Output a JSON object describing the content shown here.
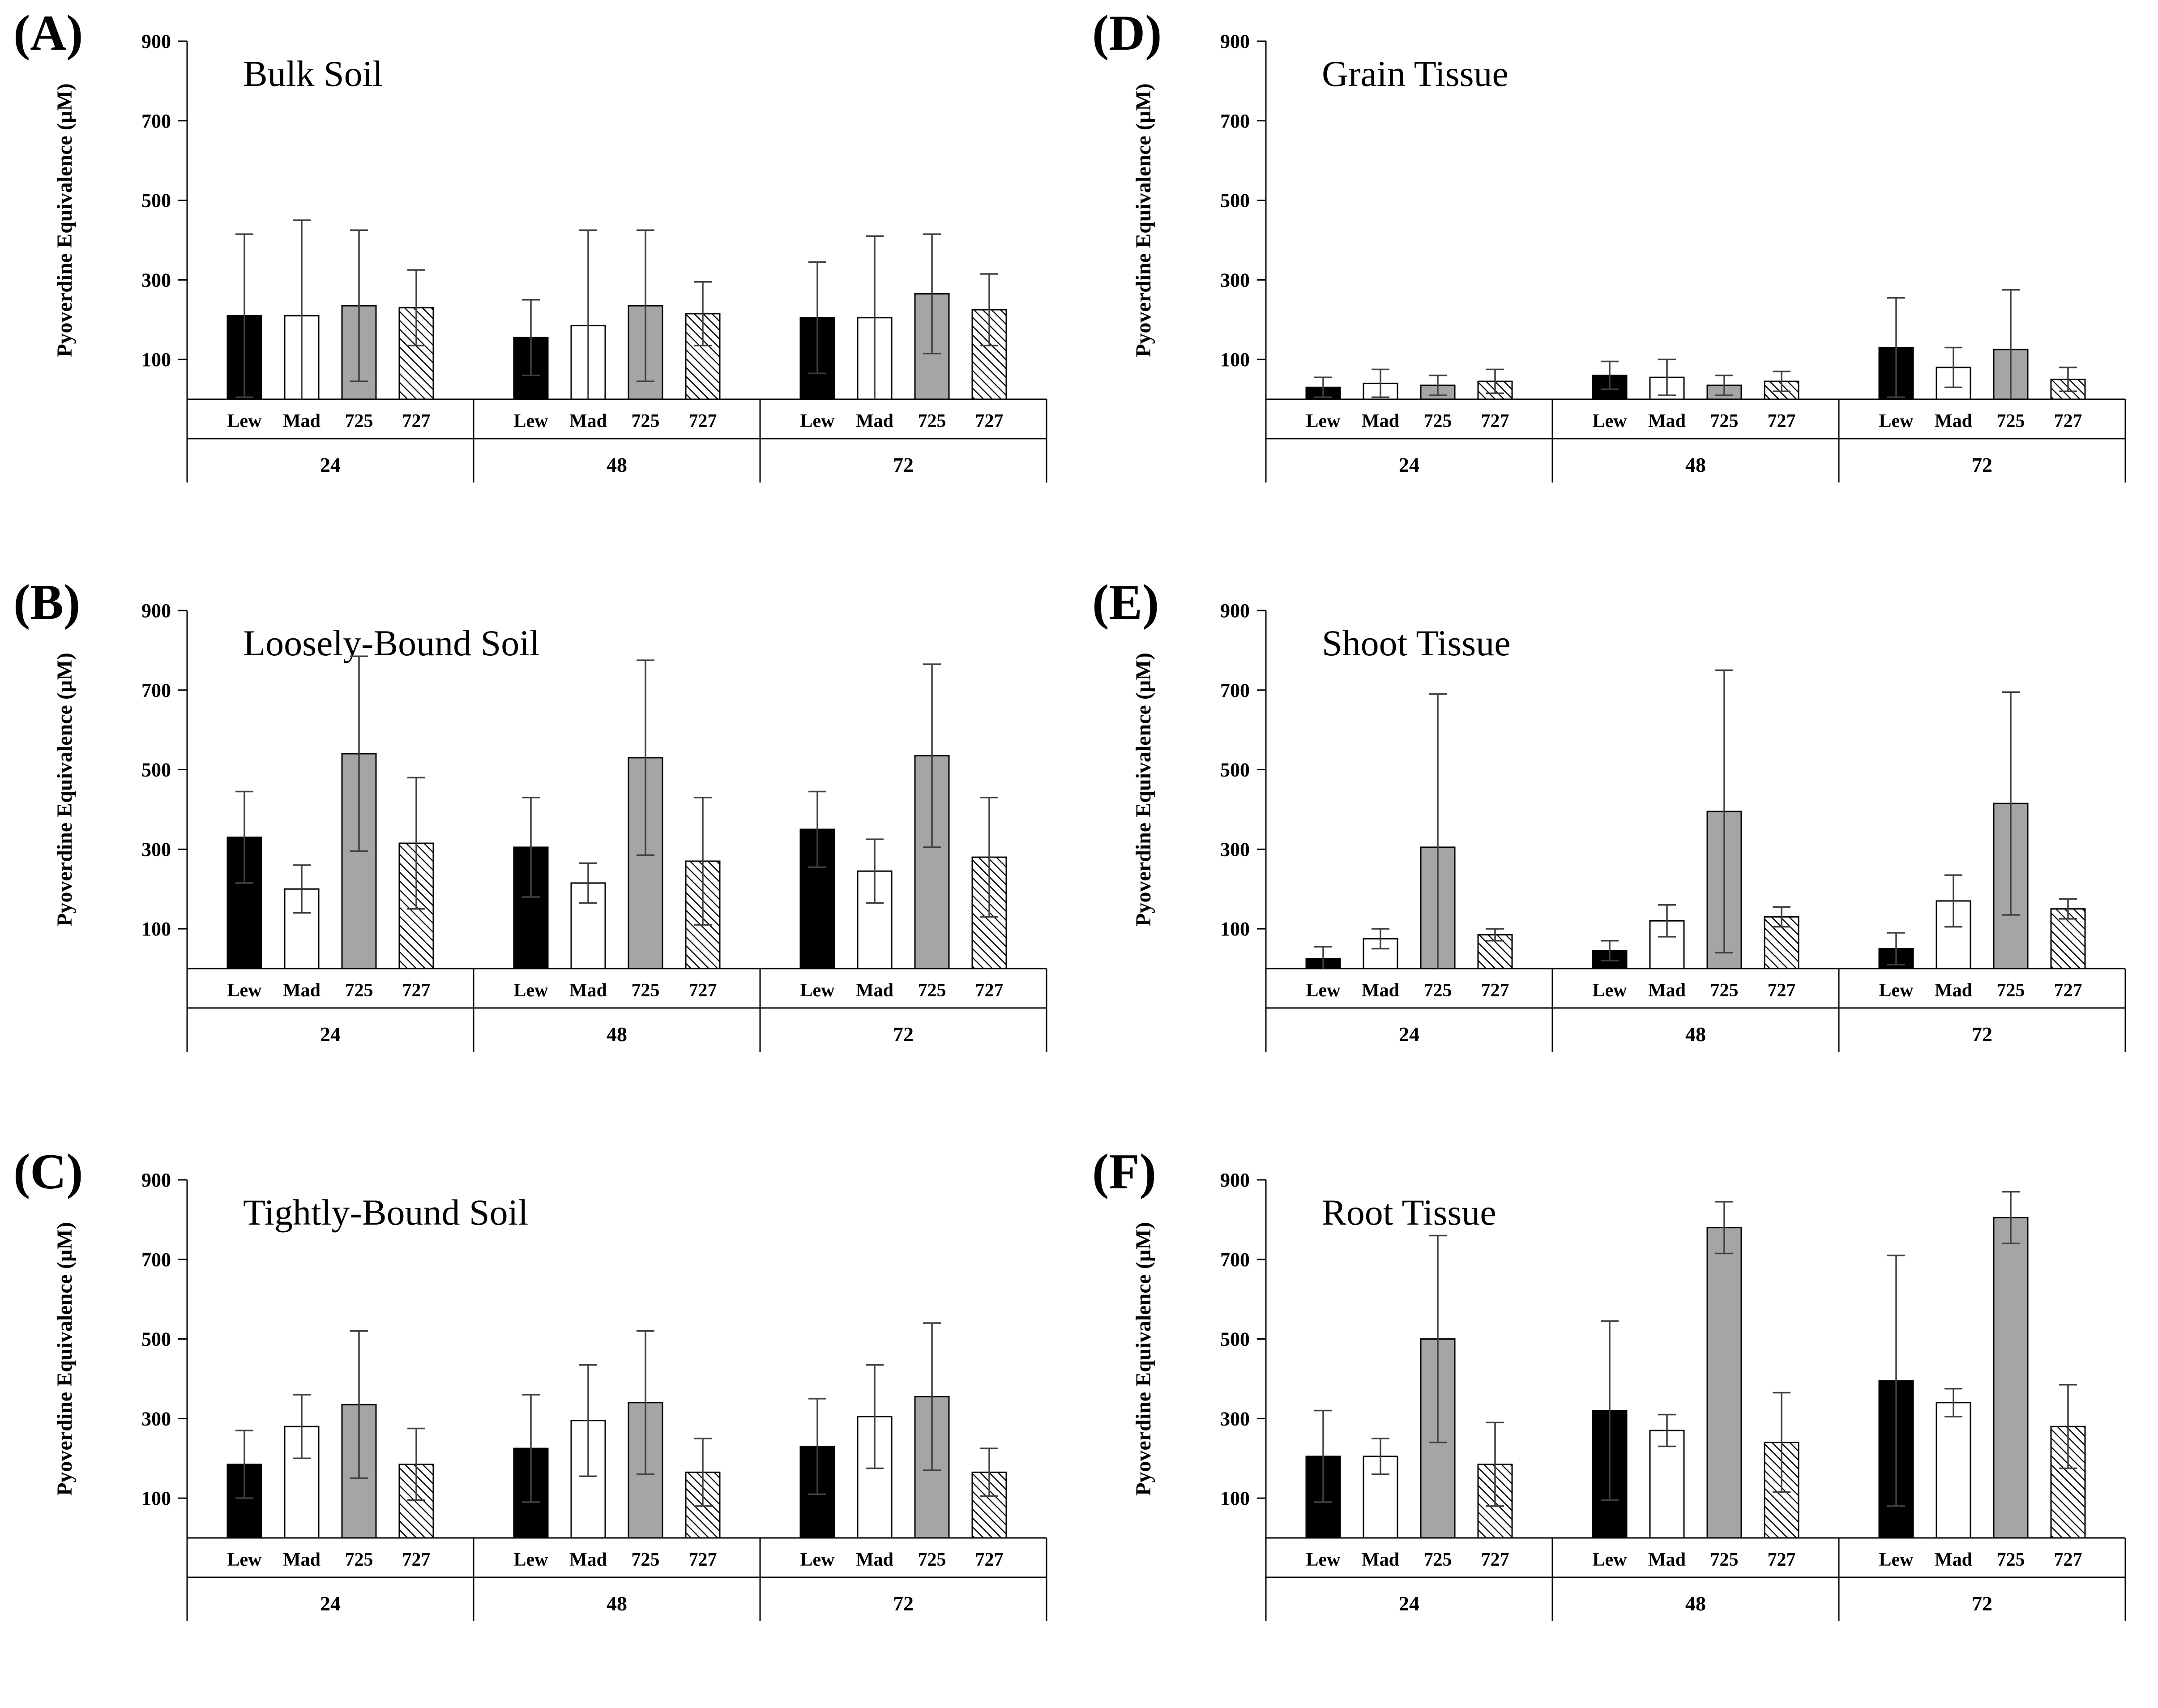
{
  "figure": {
    "background": "#ffffff",
    "description": "Six-panel bar chart figure of pyoverdine equivalence over time"
  },
  "styles": {
    "series_fills": {
      "Lew": "#000000",
      "Mad": "#ffffff",
      "725": "#a5a5a5",
      "727": "hatch"
    },
    "bar_stroke": "#000000",
    "error_color": "#404040",
    "axis_color": "#000000"
  },
  "chart_data": [
    {
      "panel_label": "(A)",
      "title": "Bulk Soil",
      "type": "bar",
      "ylabel": "Pyoverdine Equivalence (µM)",
      "xlabel": "",
      "ylim": [
        0,
        900
      ],
      "yticks": [
        900,
        700,
        500,
        300,
        100
      ],
      "grid": false,
      "legend": "none",
      "series": [
        "Lew",
        "Mad",
        "725",
        "727"
      ],
      "groups": [
        "24",
        "48",
        "72"
      ],
      "values": [
        [
          210,
          210,
          235,
          230
        ],
        [
          155,
          185,
          235,
          215
        ],
        [
          205,
          205,
          265,
          225
        ]
      ],
      "errors": [
        [
          205,
          240,
          190,
          95
        ],
        [
          95,
          240,
          190,
          80
        ],
        [
          140,
          205,
          150,
          90
        ]
      ]
    },
    {
      "panel_label": "(B)",
      "title": "Loosely-Bound Soil",
      "type": "bar",
      "ylabel": "Pyoverdine Equivalence (µM)",
      "xlabel": "",
      "ylim": [
        0,
        900
      ],
      "yticks": [
        900,
        700,
        500,
        300,
        100
      ],
      "grid": false,
      "legend": "none",
      "series": [
        "Lew",
        "Mad",
        "725",
        "727"
      ],
      "groups": [
        "24",
        "48",
        "72"
      ],
      "values": [
        [
          330,
          200,
          540,
          315
        ],
        [
          305,
          215,
          530,
          270
        ],
        [
          350,
          245,
          535,
          280
        ]
      ],
      "errors": [
        [
          115,
          60,
          245,
          165
        ],
        [
          125,
          50,
          245,
          160
        ],
        [
          95,
          80,
          230,
          150
        ]
      ]
    },
    {
      "panel_label": "(C)",
      "title": "Tightly-Bound Soil",
      "type": "bar",
      "ylabel": "Pyoverdine Equivalence (µM)",
      "xlabel": "",
      "ylim": [
        0,
        900
      ],
      "yticks": [
        900,
        700,
        500,
        300,
        100
      ],
      "grid": false,
      "legend": "none",
      "series": [
        "Lew",
        "Mad",
        "725",
        "727"
      ],
      "groups": [
        "24",
        "48",
        "72"
      ],
      "values": [
        [
          185,
          280,
          335,
          185
        ],
        [
          225,
          295,
          340,
          165
        ],
        [
          230,
          305,
          355,
          165
        ]
      ],
      "errors": [
        [
          85,
          80,
          185,
          90
        ],
        [
          135,
          140,
          180,
          85
        ],
        [
          120,
          130,
          185,
          60
        ]
      ]
    },
    {
      "panel_label": "(D)",
      "title": "Grain Tissue",
      "type": "bar",
      "ylabel": "Pyoverdine Equivalence (µM)",
      "xlabel": "",
      "ylim": [
        0,
        900
      ],
      "yticks": [
        900,
        700,
        500,
        300,
        100
      ],
      "grid": false,
      "legend": "none",
      "series": [
        "Lew",
        "Mad",
        "725",
        "727"
      ],
      "groups": [
        "24",
        "48",
        "72"
      ],
      "values": [
        [
          30,
          40,
          35,
          45
        ],
        [
          60,
          55,
          35,
          45
        ],
        [
          130,
          80,
          125,
          50
        ]
      ],
      "errors": [
        [
          25,
          35,
          25,
          30
        ],
        [
          35,
          45,
          25,
          25
        ],
        [
          125,
          50,
          150,
          30
        ]
      ]
    },
    {
      "panel_label": "(E)",
      "title": "Shoot Tissue",
      "type": "bar",
      "ylabel": "Pyoverdine Equivalence (µM)",
      "xlabel": "",
      "ylim": [
        0,
        900
      ],
      "yticks": [
        900,
        700,
        500,
        300,
        100
      ],
      "grid": false,
      "legend": "none",
      "series": [
        "Lew",
        "Mad",
        "725",
        "727"
      ],
      "groups": [
        "24",
        "48",
        "72"
      ],
      "values": [
        [
          25,
          75,
          305,
          85
        ],
        [
          45,
          120,
          395,
          130
        ],
        [
          50,
          170,
          415,
          150
        ]
      ],
      "errors": [
        [
          30,
          25,
          385,
          15
        ],
        [
          25,
          40,
          355,
          25
        ],
        [
          40,
          65,
          280,
          25
        ]
      ]
    },
    {
      "panel_label": "(F)",
      "title": "Root Tissue",
      "type": "bar",
      "ylabel": "Pyoverdine Equivalence (µM)",
      "xlabel": "",
      "ylim": [
        0,
        900
      ],
      "yticks": [
        900,
        700,
        500,
        300,
        100
      ],
      "grid": false,
      "legend": "none",
      "series": [
        "Lew",
        "Mad",
        "725",
        "727"
      ],
      "groups": [
        "24",
        "48",
        "72"
      ],
      "values": [
        [
          205,
          205,
          500,
          185
        ],
        [
          320,
          270,
          780,
          240
        ],
        [
          395,
          340,
          805,
          280
        ]
      ],
      "errors": [
        [
          115,
          45,
          260,
          105
        ],
        [
          225,
          40,
          65,
          125
        ],
        [
          315,
          35,
          65,
          105
        ]
      ]
    }
  ]
}
